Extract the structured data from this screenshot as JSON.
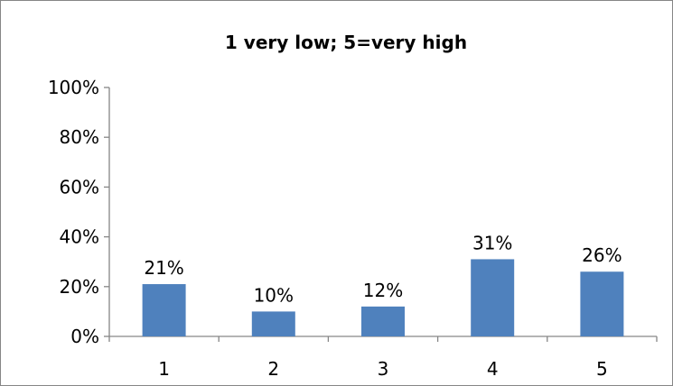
{
  "chart_data": {
    "type": "bar",
    "title": "1 very low; 5=very high",
    "categories": [
      "1",
      "2",
      "3",
      "4",
      "5"
    ],
    "values": [
      21,
      10,
      12,
      31,
      26
    ],
    "data_labels": [
      "21%",
      "10%",
      "12%",
      "31%",
      "26%"
    ],
    "y_ticks": [
      "0%",
      "20%",
      "40%",
      "60%",
      "80%",
      "100%"
    ],
    "ylim": [
      0,
      100
    ],
    "y_unit": "%",
    "xlabel": "",
    "ylabel": "",
    "grid": false,
    "legend": "none",
    "bar_color": "#4f81bd",
    "axis_color": "#868686"
  }
}
